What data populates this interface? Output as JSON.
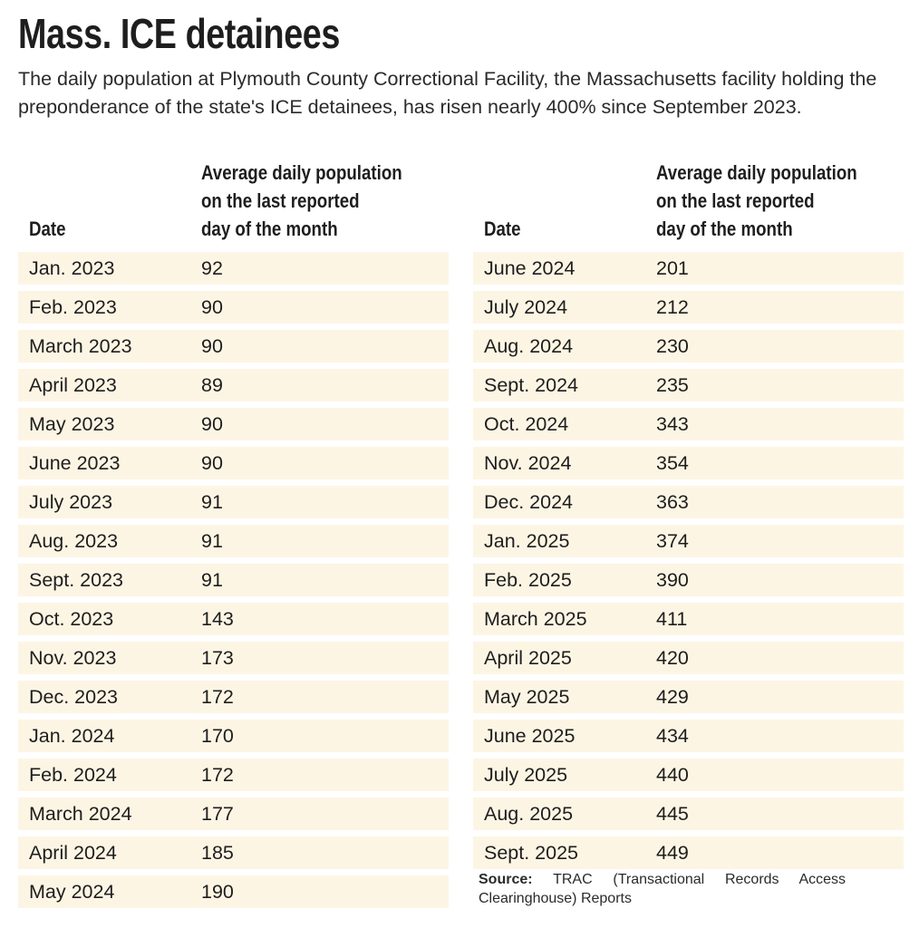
{
  "title": "Mass. ICE detainees",
  "subtitle": "The daily population at Plymouth County Correctional Facility, the Massachusetts facility holding the preponderance of the state's ICE detainees, has risen nearly 400% since September 2023.",
  "colors": {
    "row_bg": "#fdf5e4",
    "text": "#1e1e1e"
  },
  "source": {
    "label": "Source:",
    "text": "TRAC (Transactional Records Access Clearinghouse) Reports"
  },
  "chart_data": {
    "type": "table",
    "columns": [
      "Date",
      "Average daily population on the last reported day of the month"
    ],
    "header_lines": [
      "Average daily population",
      "on the last reported",
      "day of the month"
    ],
    "rows": [
      [
        "Jan. 2023",
        "92"
      ],
      [
        "Feb. 2023",
        "90"
      ],
      [
        "March 2023",
        "90"
      ],
      [
        "April 2023",
        "89"
      ],
      [
        "May 2023",
        "90"
      ],
      [
        "June 2023",
        "90"
      ],
      [
        "July 2023",
        "91"
      ],
      [
        "Aug. 2023",
        "91"
      ],
      [
        "Sept. 2023",
        "91"
      ],
      [
        "Oct. 2023",
        "143"
      ],
      [
        "Nov. 2023",
        "173"
      ],
      [
        "Dec. 2023",
        "172"
      ],
      [
        "Jan. 2024",
        "170"
      ],
      [
        "Feb. 2024",
        "172"
      ],
      [
        "March 2024",
        "177"
      ],
      [
        "April 2024",
        "185"
      ],
      [
        "May 2024",
        "190"
      ],
      [
        "June 2024",
        "201"
      ],
      [
        "July 2024",
        "212"
      ],
      [
        "Aug. 2024",
        "230"
      ],
      [
        "Sept. 2024",
        "235"
      ],
      [
        "Oct. 2024",
        "343"
      ],
      [
        "Nov. 2024",
        "354"
      ],
      [
        "Dec. 2024",
        "363"
      ],
      [
        "Jan. 2025",
        "374"
      ],
      [
        "Feb. 2025",
        "390"
      ],
      [
        "March 2025",
        "411"
      ],
      [
        "April 2025",
        "420"
      ],
      [
        "May 2025",
        "429"
      ],
      [
        "June 2025",
        "434"
      ],
      [
        "July 2025",
        "440"
      ],
      [
        "Aug. 2025",
        "445"
      ],
      [
        "Sept. 2025",
        "449"
      ]
    ]
  }
}
